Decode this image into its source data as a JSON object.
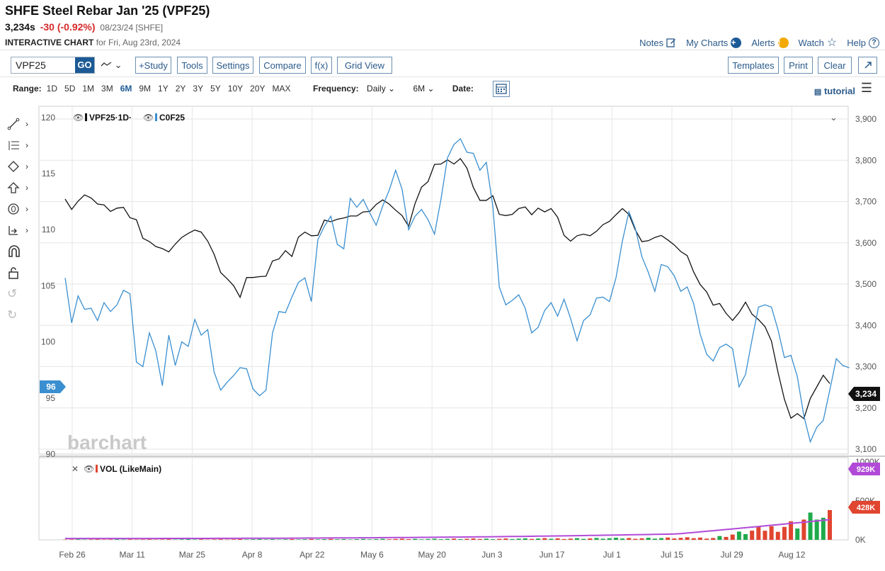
{
  "header": {
    "title": "SHFE Steel Rebar Jan '25 (VPF25)",
    "last": "3,234s",
    "change": "-30 (-0.92%)",
    "date": "08/23/24 [SHFE]",
    "subtitle_label": "INTERACTIVE CHART",
    "subtitle_rest": "for Fri, Aug 23rd, 2024"
  },
  "top_links": {
    "notes": "Notes",
    "my_charts": "My Charts",
    "alerts": "Alerts",
    "watch": "Watch",
    "help": "Help"
  },
  "toolbar": {
    "symbol_value": "VPF25",
    "go_label": "GO",
    "study_label": "+Study",
    "tools_label": "Tools",
    "settings_label": "Settings",
    "compare_label": "Compare",
    "fx_label": "f(x)",
    "grid_view_label": "Grid View",
    "templates_label": "Templates",
    "print_label": "Print",
    "clear_label": "Clear"
  },
  "range_row": {
    "label": "Range:",
    "ranges": [
      "1D",
      "5D",
      "1M",
      "3M",
      "6M",
      "9M",
      "1Y",
      "2Y",
      "3Y",
      "5Y",
      "10Y",
      "20Y",
      "MAX"
    ],
    "active": "6M",
    "frequency_label": "Frequency:",
    "frequency_value": "Daily",
    "period_value": "6M",
    "date_label": "Date:",
    "tutorial_label": "tutorial"
  },
  "chart_data": [
    {
      "type": "line",
      "legend": [
        "VPF25·1D·",
        "C0F25"
      ],
      "watermark": "barchart",
      "colors": {
        "VPF25": "#111111",
        "C0F25": "#3a8fd0"
      },
      "y_left_ticks": [
        120,
        115,
        110,
        105,
        100,
        95,
        90
      ],
      "y_left_range": [
        90,
        121
      ],
      "y_right_ticks": [
        "3,900",
        "3,800",
        "3,700",
        "3,600",
        "3,500",
        "3,400",
        "3,300",
        "3,200",
        "3,100"
      ],
      "y_right_range": [
        3100,
        3910
      ],
      "x_ticks": [
        "Feb 26",
        "Mar 11",
        "Mar 25",
        "Apr 8",
        "Apr 22",
        "May 6",
        "May 20",
        "Jun 3",
        "Jun 17",
        "Jul 1",
        "Jul 15",
        "Jul 29",
        "Aug 12"
      ],
      "left_marker": "96",
      "right_marker": "3,234",
      "series": [
        {
          "name": "VPF25",
          "axis": "right",
          "values": [
            3706,
            3681,
            3701,
            3716,
            3709,
            3694,
            3692,
            3676,
            3684,
            3686,
            3661,
            3656,
            3611,
            3603,
            3591,
            3586,
            3578,
            3597,
            3613,
            3623,
            3631,
            3626,
            3604,
            3572,
            3528,
            3513,
            3496,
            3468,
            3516,
            3516,
            3518,
            3519,
            3556,
            3561,
            3581,
            3567,
            3614,
            3626,
            3617,
            3618,
            3655,
            3651,
            3657,
            3660,
            3665,
            3665,
            3675,
            3676,
            3693,
            3704,
            3694,
            3679,
            3666,
            3640,
            3695,
            3735,
            3748,
            3790,
            3791,
            3801,
            3791,
            3804,
            3781,
            3734,
            3703,
            3703,
            3714,
            3669,
            3666,
            3669,
            3683,
            3687,
            3668,
            3684,
            3675,
            3683,
            3662,
            3618,
            3604,
            3617,
            3621,
            3617,
            3628,
            3644,
            3652,
            3668,
            3683,
            3669,
            3631,
            3603,
            3605,
            3613,
            3618,
            3607,
            3595,
            3579,
            3569,
            3529,
            3499,
            3481,
            3449,
            3453,
            3429,
            3412,
            3431,
            3456,
            3427,
            3414,
            3397,
            3362,
            3287,
            3221,
            3175,
            3186,
            3174,
            3223,
            3251,
            3279,
            3259
          ],
          "display_scale": "pixel_mapped"
        },
        {
          "name": "C0F25",
          "axis": "left",
          "values": [
            105.7,
            101.7,
            104.1,
            102.9,
            103.0,
            101.9,
            103.5,
            102.7,
            103.3,
            104.6,
            104.3,
            98.2,
            97.8,
            100.8,
            99.2,
            96.1,
            100.6,
            97.9,
            100.0,
            99.6,
            102.0,
            100.6,
            101.1,
            97.3,
            95.7,
            96.4,
            97.0,
            97.7,
            97.6,
            95.8,
            95.2,
            95.7,
            100.8,
            102.7,
            102.6,
            104.0,
            105.3,
            105.7,
            103.6,
            109.1,
            110.3,
            111.2,
            108.7,
            108.3,
            112.8,
            112.0,
            112.7,
            111.5,
            110.4,
            112.1,
            113.5,
            115.3,
            113.6,
            110.0,
            111.2,
            111.8,
            110.9,
            109.6,
            112.7,
            116.4,
            117.6,
            118.1,
            116.9,
            116.8,
            115.3,
            116.0,
            112.1,
            104.9,
            103.3,
            103.7,
            104.2,
            103.0,
            100.8,
            101.3,
            102.8,
            103.5,
            102.3,
            103.8,
            102.1,
            100.1,
            101.9,
            102.4,
            103.9,
            104.0,
            103.6,
            105.7,
            109.0,
            111.6,
            110.1,
            107.6,
            106.2,
            104.5,
            106.9,
            106.7,
            105.9,
            104.5,
            104.9,
            103.4,
            100.7,
            98.9,
            98.3,
            99.5,
            99.8,
            99.4,
            96.0,
            97.1,
            100.2,
            103.1,
            103.3,
            103.1,
            101.1,
            98.6,
            98.8,
            96.9,
            93.4,
            91.1,
            92.4,
            93.0,
            95.7,
            98.5,
            97.9,
            97.7
          ]
        }
      ]
    },
    {
      "type": "bar",
      "legend": [
        "VOL (LikeMain)"
      ],
      "y_ticks": [
        "1000K",
        "500K",
        "0K"
      ],
      "ylim": [
        0,
        1000
      ],
      "series": [
        {
          "name": "VOL",
          "unit": "K"
        },
        {
          "name": "OI",
          "unit": "K"
        }
      ],
      "markers": {
        "oi": "929K",
        "vol": "428K"
      },
      "x_ticks": [
        "Feb 26",
        "Mar 11",
        "Mar 25",
        "Apr 8",
        "Apr 22",
        "May 6",
        "May 20",
        "Jun 3",
        "Jun 17",
        "Jul 1",
        "Jul 15",
        "Jul 29",
        "Aug 12"
      ]
    }
  ]
}
